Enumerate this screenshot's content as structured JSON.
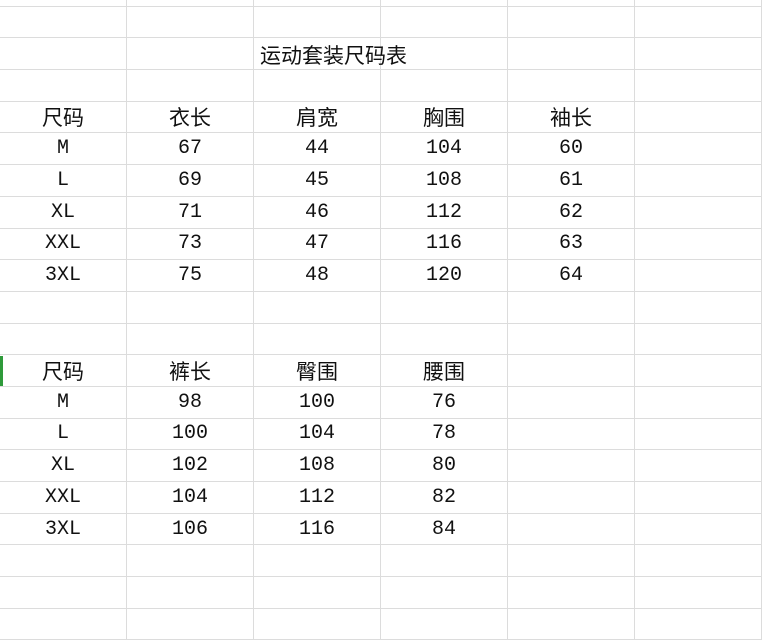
{
  "title": "运动套装尺码表",
  "top_table": {
    "headers": [
      "尺码",
      "衣长",
      "肩宽",
      "胸围",
      "袖长"
    ],
    "rows": [
      [
        "M",
        "67",
        "44",
        "104",
        "60"
      ],
      [
        "L",
        "69",
        "45",
        "108",
        "61"
      ],
      [
        "XL",
        "71",
        "46",
        "112",
        "62"
      ],
      [
        "XXL",
        "73",
        "47",
        "116",
        "63"
      ],
      [
        "3XL",
        "75",
        "48",
        "120",
        "64"
      ]
    ]
  },
  "bottom_table": {
    "headers": [
      "尺码",
      "裤长",
      "臀围",
      "腰围"
    ],
    "rows": [
      [
        "M",
        "98",
        "100",
        "76"
      ],
      [
        "L",
        "100",
        "104",
        "78"
      ],
      [
        "XL",
        "102",
        "108",
        "80"
      ],
      [
        "XXL",
        "104",
        "112",
        "82"
      ],
      [
        "3XL",
        "106",
        "116",
        "84"
      ]
    ]
  },
  "colors": {
    "gridline": "#dcdcdc",
    "selected_row_marker": "#2e9a3a"
  }
}
